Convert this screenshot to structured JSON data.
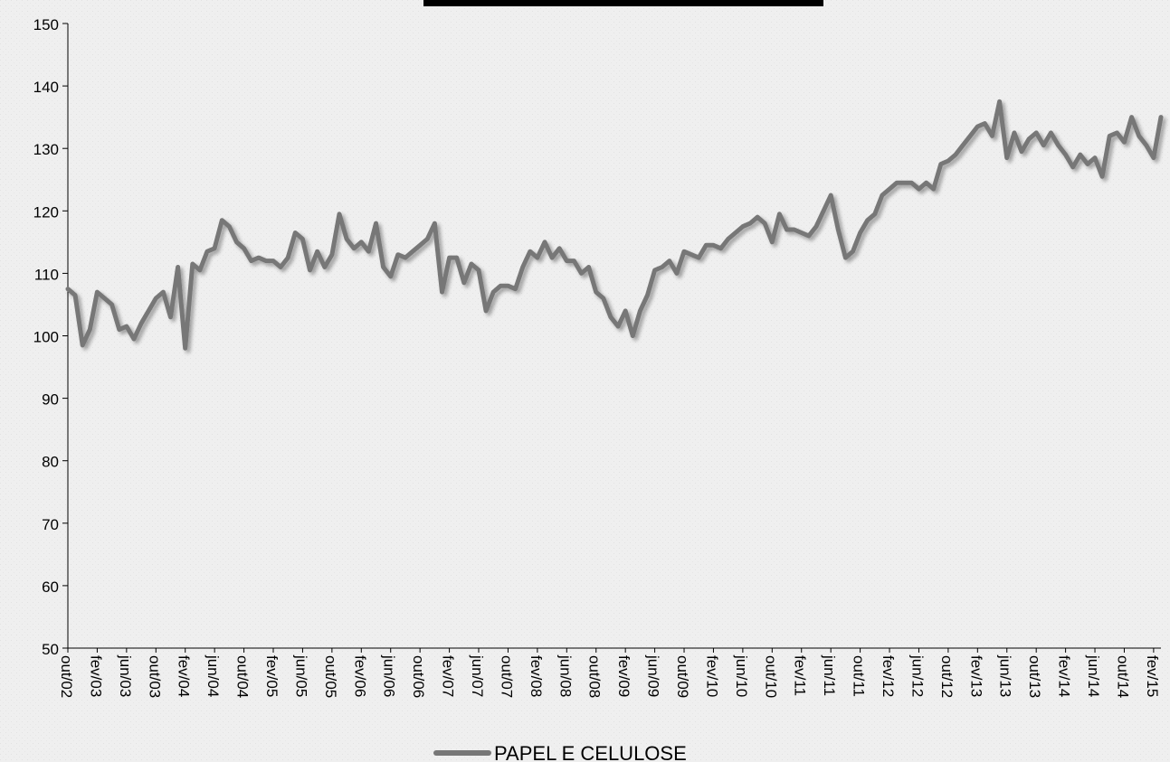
{
  "chart_data": {
    "type": "line",
    "title": "",
    "xlabel": "",
    "ylabel": "",
    "ylim": [
      50,
      150
    ],
    "yticks": [
      50,
      60,
      70,
      80,
      90,
      100,
      110,
      120,
      130,
      140,
      150
    ],
    "xtick_labels": [
      "out/02",
      "fev/03",
      "jun/03",
      "out/03",
      "fev/04",
      "jun/04",
      "out/04",
      "fev/05",
      "jun/05",
      "out/05",
      "fev/06",
      "jun/06",
      "out/06",
      "fev/07",
      "jun/07",
      "out/07",
      "fev/08",
      "jun/08",
      "out/08",
      "fev/09",
      "jun/09",
      "out/09",
      "fev/10",
      "jun/10",
      "out/10",
      "fev/11",
      "jun/11",
      "out/11",
      "fev/12",
      "jun/12",
      "out/12",
      "fev/13",
      "jun/13",
      "out/13",
      "fev/14",
      "jun/14",
      "out/14",
      "fev/15"
    ],
    "x_start": "out/02",
    "grid": false,
    "legend_position": "bottom",
    "line_color": "#777777",
    "series": [
      {
        "name": "PAPEL E CELULOSE",
        "values": [
          107.5,
          106.5,
          98.5,
          101,
          107,
          106,
          105,
          101,
          101.5,
          99.5,
          102,
          104,
          106,
          107,
          103,
          111,
          98,
          111.5,
          110.5,
          113.5,
          114,
          118.5,
          117.5,
          115,
          114,
          112,
          112.5,
          112,
          112,
          111,
          112.5,
          116.5,
          115.5,
          110.5,
          113.5,
          111,
          113,
          119.5,
          115.5,
          114,
          115,
          113.5,
          118,
          111,
          109.5,
          113,
          112.5,
          113.5,
          114.5,
          115.5,
          118,
          107,
          112.5,
          112.5,
          108.5,
          111.5,
          110.5,
          104,
          107,
          108,
          108,
          107.5,
          111,
          113.5,
          112.5,
          115,
          112.5,
          114,
          112,
          112,
          110,
          111,
          107,
          106,
          103,
          101.5,
          104,
          100,
          104,
          106.5,
          110.5,
          111,
          112,
          110,
          113.5,
          113,
          112.5,
          114.5,
          114.5,
          114,
          115.5,
          116.5,
          117.5,
          118,
          119,
          118,
          115,
          119.5,
          117,
          117,
          116.5,
          116,
          117.5,
          120,
          122.5,
          117,
          112.5,
          113.5,
          116.5,
          118.5,
          119.5,
          122.5,
          123.5,
          124.5,
          124.5,
          124.5,
          123.5,
          124.5,
          123.5,
          127.5,
          128,
          129,
          130.5,
          132,
          133.5,
          134,
          132,
          137.5,
          128.5,
          132.5,
          129.5,
          131.5,
          132.5,
          130.5,
          132.5,
          130.5,
          129,
          127,
          129,
          127.5,
          128.5,
          125.5,
          132,
          132.5,
          131,
          135,
          132,
          130.5,
          128.5,
          135
        ]
      }
    ]
  }
}
